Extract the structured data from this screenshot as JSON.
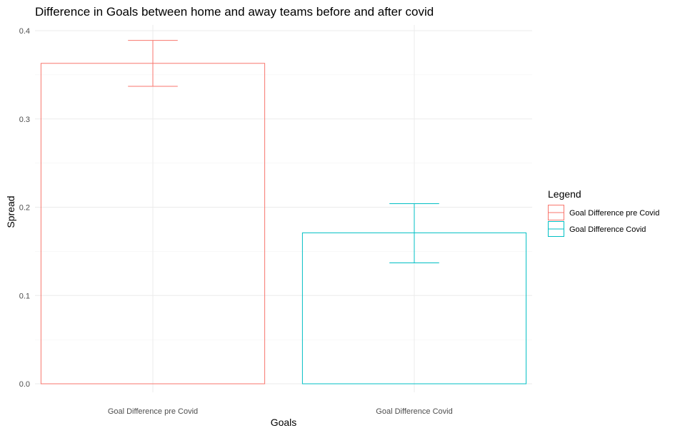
{
  "chart_data": {
    "type": "bar",
    "title": "Difference in Goals between home and away teams before and after covid",
    "xlabel": "Goals",
    "ylabel": "Spread",
    "categories": [
      "Goal Difference pre Covid",
      "Goal Difference Covid"
    ],
    "values": [
      0.363,
      0.171
    ],
    "error_bars": [
      {
        "lower": 0.337,
        "upper": 0.389
      },
      {
        "lower": 0.137,
        "upper": 0.204
      }
    ],
    "colors": [
      "#F8766D",
      "#00BFC4"
    ],
    "ylim": [
      0,
      0.4
    ],
    "yticks": [
      0.0,
      0.1,
      0.2,
      0.3,
      0.4
    ],
    "ytick_labels": [
      "0.0",
      "0.1",
      "0.2",
      "0.3",
      "0.4"
    ],
    "grid": true,
    "legend": {
      "title": "Legend",
      "position": "right",
      "entries": [
        "Goal Difference pre Covid",
        "Goal Difference Covid"
      ]
    }
  }
}
